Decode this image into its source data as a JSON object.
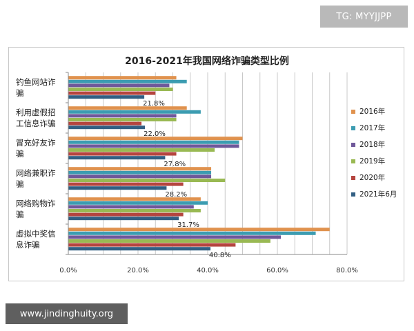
{
  "watermarks": {
    "top_right": "TG: MYYJJPP",
    "bottom_left": "www.jindinghuity.org"
  },
  "chart_data": {
    "type": "bar",
    "orientation": "horizontal",
    "title": "2016-2021年我国网络诈骗类型比例",
    "categories": [
      [
        "钓鱼网站诈",
        "骗"
      ],
      [
        "利用虚假招",
        "工信息诈骗"
      ],
      [
        "冒充好友诈",
        "骗"
      ],
      [
        "网络兼职诈",
        "骗"
      ],
      [
        "网络购物诈",
        "骗"
      ],
      [
        "虚拟中奖信",
        "息诈骗"
      ]
    ],
    "series": [
      {
        "name": "2016年",
        "color": "#e0924e",
        "values": [
          31,
          34,
          50,
          41,
          38,
          75
        ]
      },
      {
        "name": "2017年",
        "color": "#3c9cb1",
        "values": [
          34,
          38,
          49,
          41,
          40,
          71
        ]
      },
      {
        "name": "2018年",
        "color": "#6f589a",
        "values": [
          29,
          31,
          49,
          41,
          36,
          61
        ]
      },
      {
        "name": "2019年",
        "color": "#99b953",
        "values": [
          30,
          31,
          42,
          45,
          38,
          58
        ]
      },
      {
        "name": "2020年",
        "color": "#b5453f",
        "values": [
          25,
          21,
          31,
          33,
          33,
          48
        ]
      },
      {
        "name": "2021年6月",
        "color": "#325f83",
        "values": [
          21.8,
          22.0,
          27.8,
          28.2,
          31.7,
          40.8
        ]
      }
    ],
    "data_labels": [
      "21.8%",
      "22.0%",
      "27.8%",
      "28.2%",
      "31.7%",
      "40.8%"
    ],
    "x_ticks": [
      "0.0%",
      "20.0%",
      "40.0%",
      "60.0%",
      "80.0%"
    ],
    "xlim": [
      0,
      80
    ],
    "grid": true,
    "legend_position": "right"
  }
}
